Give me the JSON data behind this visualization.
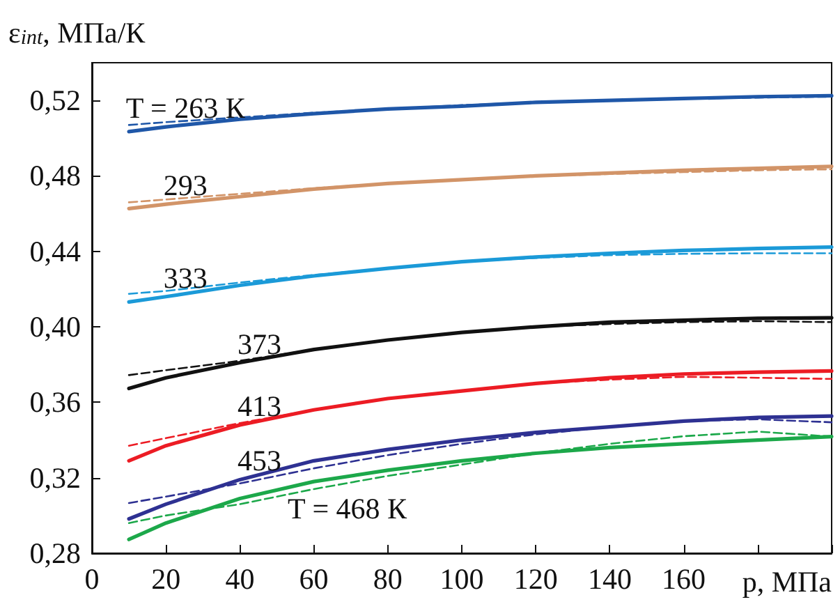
{
  "chart_data": {
    "type": "line",
    "ylabel": "ε$_{int}$, МПа/К",
    "xlabel": "p, МПа",
    "xlim": [
      0,
      200
    ],
    "xticks": [
      0,
      20,
      40,
      60,
      80,
      100,
      120,
      140,
      160,
      {
        "value": 180,
        "label": null
      },
      {
        "value": 200,
        "label": null
      }
    ],
    "ylim": [
      0.28,
      0.54
    ],
    "yticks": [
      {
        "value": 0.28,
        "label": "0,28"
      },
      {
        "value": 0.32,
        "label": "0,32"
      },
      {
        "value": 0.36,
        "label": "0,36"
      },
      {
        "value": 0.4,
        "label": "0,40"
      },
      {
        "value": 0.44,
        "label": "0,44"
      },
      {
        "value": 0.48,
        "label": "0,48"
      },
      {
        "value": 0.52,
        "label": "0,52"
      }
    ],
    "x": [
      10,
      20,
      40,
      60,
      80,
      100,
      120,
      140,
      160,
      180,
      200
    ],
    "grid": false,
    "marker": "none",
    "series": [
      {
        "name": "T = 263 К",
        "color": "#1f57a8",
        "line_style": "solid",
        "values": [
          0.5035,
          0.506,
          0.51,
          0.513,
          0.5155,
          0.517,
          0.519,
          0.52,
          0.521,
          0.522,
          0.5225
        ]
      },
      {
        "color": "#1f57a8",
        "line_style": "dashed",
        "values": [
          0.507,
          0.5085,
          0.511,
          0.5135,
          0.5155,
          0.5175,
          0.519,
          0.52,
          0.521,
          0.5215,
          0.522
        ]
      },
      {
        "name": "293",
        "color": "#d29468",
        "line_style": "solid",
        "values": [
          0.4627,
          0.465,
          0.469,
          0.473,
          0.476,
          0.478,
          0.48,
          0.4815,
          0.483,
          0.484,
          0.485
        ]
      },
      {
        "color": "#d29468",
        "line_style": "dashed",
        "values": [
          0.466,
          0.4675,
          0.4705,
          0.4735,
          0.476,
          0.478,
          0.4798,
          0.481,
          0.482,
          0.483,
          0.4835
        ]
      },
      {
        "name": "333",
        "color": "#1b9ad8",
        "line_style": "solid",
        "values": [
          0.4132,
          0.416,
          0.422,
          0.427,
          0.431,
          0.4345,
          0.437,
          0.439,
          0.4405,
          0.4415,
          0.4423
        ]
      },
      {
        "color": "#1b9ad8",
        "line_style": "dashed",
        "values": [
          0.4175,
          0.419,
          0.4235,
          0.4275,
          0.431,
          0.4345,
          0.4365,
          0.438,
          0.4387,
          0.439,
          0.439
        ]
      },
      {
        "name": "373",
        "color": "#111111",
        "line_style": "solid",
        "values": [
          0.3673,
          0.373,
          0.381,
          0.388,
          0.393,
          0.397,
          0.4,
          0.4025,
          0.4035,
          0.4045,
          0.4048
        ]
      },
      {
        "color": "#111111",
        "line_style": "dashed",
        "values": [
          0.3744,
          0.377,
          0.382,
          0.388,
          0.393,
          0.397,
          0.4,
          0.4015,
          0.4025,
          0.403,
          0.4025
        ]
      },
      {
        "name": "413",
        "color": "#ec1c24",
        "line_style": "solid",
        "values": [
          0.329,
          0.337,
          0.348,
          0.356,
          0.362,
          0.366,
          0.37,
          0.373,
          0.375,
          0.376,
          0.3766
        ]
      },
      {
        "color": "#ec1c24",
        "line_style": "dashed",
        "values": [
          0.337,
          0.341,
          0.349,
          0.356,
          0.362,
          0.366,
          0.37,
          0.372,
          0.3735,
          0.373,
          0.3724
        ]
      },
      {
        "name": "453",
        "color": "#2e3192",
        "line_style": "solid",
        "values": [
          0.2982,
          0.306,
          0.319,
          0.329,
          0.335,
          0.34,
          0.344,
          0.347,
          0.35,
          0.352,
          0.3527
        ]
      },
      {
        "color": "#2e3192",
        "line_style": "dashed",
        "values": [
          0.3066,
          0.31,
          0.317,
          0.325,
          0.332,
          0.338,
          0.343,
          0.347,
          0.35,
          0.351,
          0.3494
        ]
      },
      {
        "name": "T = 468 К",
        "color": "#1ca84a",
        "line_style": "solid",
        "values": [
          0.2873,
          0.296,
          0.309,
          0.318,
          0.324,
          0.329,
          0.333,
          0.336,
          0.338,
          0.34,
          0.3418
        ]
      },
      {
        "color": "#1ca84a",
        "line_style": "dashed",
        "values": [
          0.296,
          0.3,
          0.306,
          0.314,
          0.321,
          0.327,
          0.333,
          0.338,
          0.342,
          0.3445,
          0.3418
        ]
      }
    ]
  }
}
